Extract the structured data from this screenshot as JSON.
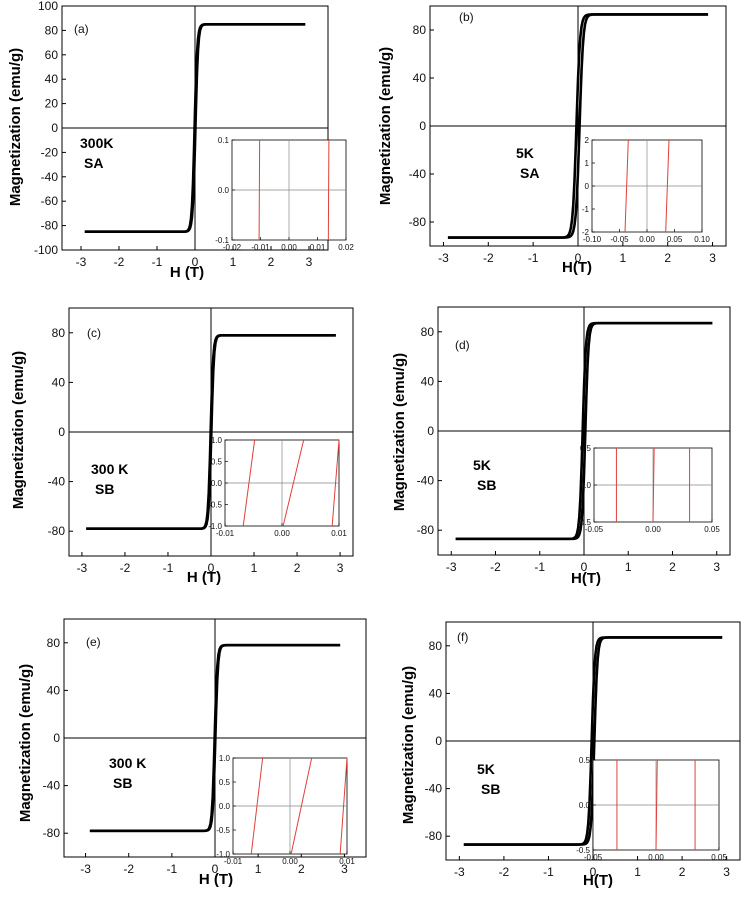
{
  "chart_data": [
    {
      "type": "line",
      "panel_label": "(a)",
      "annotation": [
        "300K",
        "SA"
      ],
      "xlabel": "H (T)",
      "ylabel": "Magnetization (emu/g)",
      "xlim": [
        -3.5,
        3.5
      ],
      "ylim": [
        -100,
        100
      ],
      "xticks": [
        -3,
        -2,
        -1,
        0,
        1,
        2,
        3
      ],
      "yticks": [
        -100,
        -80,
        -60,
        -40,
        -20,
        0,
        20,
        40,
        60,
        80,
        100
      ],
      "ms": 85,
      "hc": 0.011,
      "width": 0.07,
      "xrange": [
        -2.9,
        2.9
      ],
      "inset": {
        "xlim": [
          -0.02,
          0.02
        ],
        "ylim": [
          -0.1,
          0.1
        ],
        "xticks": [
          "-0.02",
          "-0.01",
          "0.00",
          "0.01",
          "0.02"
        ],
        "yticks": [
          "-0.1",
          "0.0",
          "0.1"
        ],
        "lines": [
          {
            "x1": -0.0105,
            "x2": -0.0103
          },
          {
            "x1": 0.0138,
            "x2": 0.014
          }
        ]
      }
    },
    {
      "type": "line",
      "panel_label": "(b)",
      "annotation": [
        "5K",
        "SA"
      ],
      "xlabel": "H(T)",
      "ylabel": "Magnetization (emu/g)",
      "xlim": [
        -3.3,
        3.3
      ],
      "ylim": [
        -100,
        100
      ],
      "xticks": [
        -3,
        -2,
        -1,
        0,
        1,
        2,
        3
      ],
      "yticks": [
        -80,
        -40,
        0,
        40,
        80
      ],
      "ms": 93,
      "hc": 0.035,
      "width": 0.08,
      "xrange": [
        -2.9,
        2.9
      ],
      "inset": {
        "xlim": [
          -0.1,
          0.1
        ],
        "ylim": [
          -2,
          2
        ],
        "xticks": [
          "-0.10",
          "-0.05",
          "0.00",
          "0.05",
          "0.10"
        ],
        "yticks": [
          "-2",
          "-1",
          "0",
          "1",
          "2"
        ],
        "lines": [
          {
            "x1": -0.04,
            "x2": -0.034
          },
          {
            "x1": 0.034,
            "x2": 0.04
          }
        ]
      }
    },
    {
      "type": "line",
      "panel_label": "(c)",
      "annotation": [
        "300 K",
        "SB"
      ],
      "xlabel": "H (T)",
      "ylabel": "Magnetization (emu/g)",
      "xlim": [
        -3.3,
        3.3
      ],
      "ylim": [
        -100,
        100
      ],
      "xticks": [
        -3,
        -2,
        -1,
        0,
        1,
        2,
        3
      ],
      "yticks": [
        -80,
        -40,
        0,
        40,
        80
      ],
      "ms": 78,
      "hc": 0.008,
      "width": 0.06,
      "xrange": [
        -2.9,
        2.9
      ],
      "inset": {
        "xlim": [
          -0.01,
          0.01
        ],
        "ylim": [
          -1,
          1
        ],
        "xticks": [
          "-0.01",
          "0.00",
          "0.01"
        ],
        "yticks": [
          "-1.0",
          "-0.5",
          "0.0",
          "0.5",
          "1.0"
        ],
        "lines": [
          {
            "x1": -0.0068,
            "x2": -0.0048
          },
          {
            "x1": 0.0002,
            "x2": 0.0038
          },
          {
            "x1": 0.0088,
            "x2": 0.01
          }
        ]
      }
    },
    {
      "type": "line",
      "panel_label": "(d)",
      "annotation": [
        "5K",
        "SB"
      ],
      "xlabel": "H(T)",
      "ylabel": "Magnetization (emu/g)",
      "xlim": [
        -3.3,
        3.3
      ],
      "ylim": [
        -100,
        100
      ],
      "xticks": [
        -3,
        -2,
        -1,
        0,
        1,
        2,
        3
      ],
      "yticks": [
        -80,
        -40,
        0,
        40,
        80
      ],
      "ms": 87,
      "hc": 0.03,
      "width": 0.07,
      "xrange": [
        -2.9,
        2.9
      ],
      "inset": {
        "xlim": [
          -0.05,
          0.05
        ],
        "ylim": [
          -0.6,
          0.6
        ],
        "xticks": [
          "-0.05",
          "0.00",
          "0.05"
        ],
        "yticks": [
          "-0.5",
          "0.0",
          "0.5"
        ],
        "lines": [
          {
            "x1": -0.031,
            "x2": -0.031
          },
          {
            "x1": 0.0,
            "x2": 0.001
          },
          {
            "x1": 0.031,
            "x2": 0.031
          }
        ]
      }
    },
    {
      "type": "line",
      "panel_label": "(e)",
      "annotation": [
        "300 K",
        "SB"
      ],
      "xlabel": "H (T)",
      "ylabel": "Magnetization (emu/g)",
      "xlim": [
        -3.5,
        3.5
      ],
      "ylim": [
        -100,
        100
      ],
      "xticks": [
        -3,
        -2,
        -1,
        0,
        1,
        2,
        3
      ],
      "yticks": [
        -80,
        -40,
        0,
        40,
        80
      ],
      "ms": 78,
      "hc": 0.008,
      "width": 0.06,
      "xrange": [
        -2.9,
        2.9
      ],
      "inset": {
        "xlim": [
          -0.01,
          0.01
        ],
        "ylim": [
          -1,
          1
        ],
        "xticks": [
          "-0.01",
          "0.00",
          "0.01"
        ],
        "yticks": [
          "-1.0",
          "-0.5",
          "0.0",
          "0.5",
          "1.0"
        ],
        "lines": [
          {
            "x1": -0.0068,
            "x2": -0.0048
          },
          {
            "x1": 0.0002,
            "x2": 0.0038
          },
          {
            "x1": 0.0088,
            "x2": 0.01
          }
        ]
      }
    },
    {
      "type": "line",
      "panel_label": "(f)",
      "annotation": [
        "5K",
        "SB"
      ],
      "xlabel": "H(T)",
      "ylabel": "Magnetization (emu/g)",
      "xlim": [
        -3.3,
        3.3
      ],
      "ylim": [
        -100,
        100
      ],
      "xticks": [
        -3,
        -2,
        -1,
        0,
        1,
        2,
        3
      ],
      "yticks": [
        -80,
        -40,
        0,
        40,
        80
      ],
      "ms": 87,
      "hc": 0.03,
      "width": 0.07,
      "xrange": [
        -2.9,
        2.9
      ],
      "inset": {
        "xlim": [
          -0.05,
          0.05
        ],
        "ylim": [
          -0.6,
          0.6
        ],
        "xticks": [
          "-0.05",
          "0.00",
          "0.05"
        ],
        "yticks": [
          "-0.5",
          "0.0",
          "0.5"
        ],
        "lines": [
          {
            "x1": -0.031,
            "x2": -0.031
          },
          {
            "x1": 0.0,
            "x2": 0.001
          },
          {
            "x1": 0.031,
            "x2": 0.031
          }
        ]
      }
    }
  ],
  "colors": {
    "curve": "#000000",
    "inset_line": "#e0403a",
    "inset_axis": "#888888"
  }
}
